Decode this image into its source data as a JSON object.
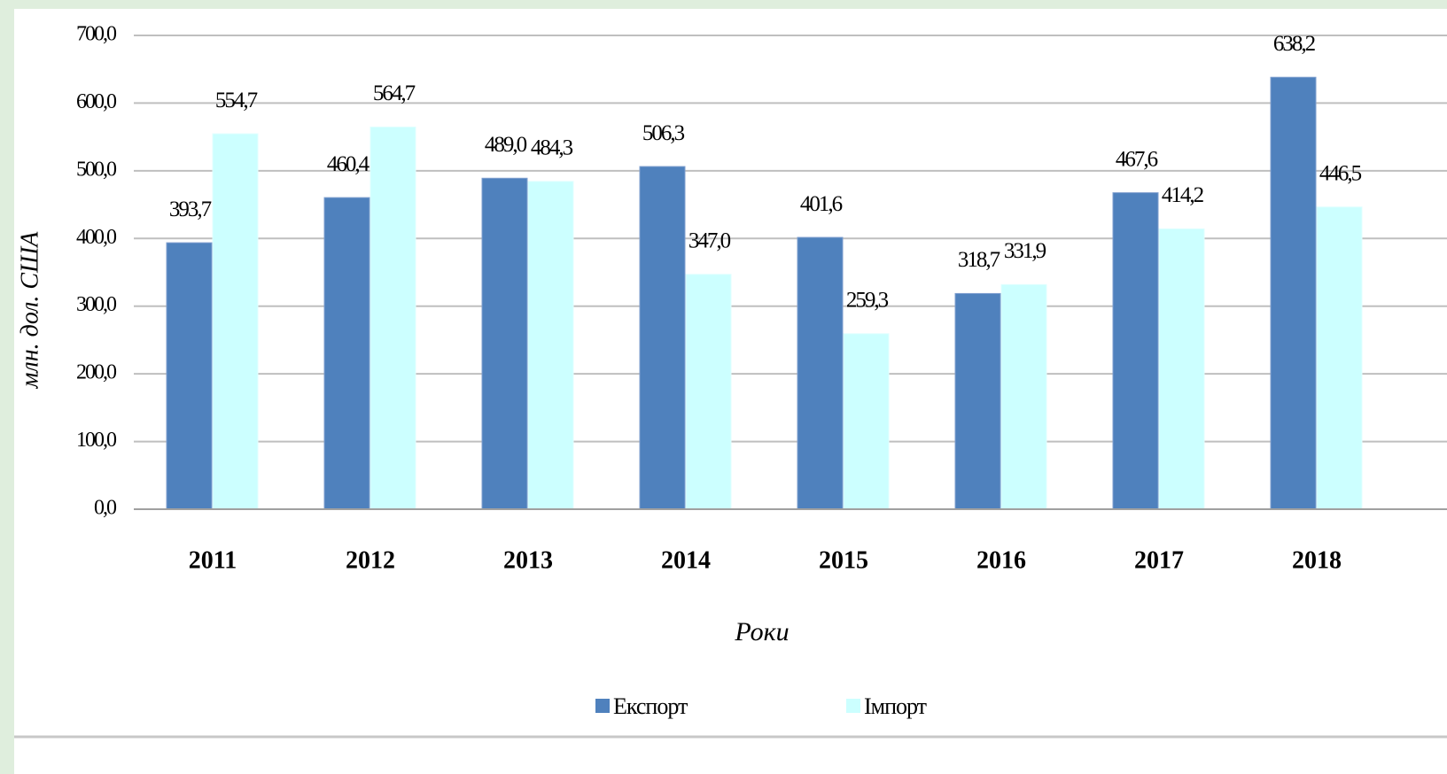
{
  "chart_data": {
    "type": "bar",
    "categories": [
      "2011",
      "2012",
      "2013",
      "2014",
      "2015",
      "2016",
      "2017",
      "2018"
    ],
    "series": [
      {
        "name": "Експорт",
        "color": "#4f81bd",
        "values": [
          393.7,
          460.4,
          489.0,
          506.3,
          401.6,
          318.7,
          467.6,
          638.2
        ],
        "value_labels": [
          "393,7",
          "460,4",
          "489,0",
          "506,3",
          "401,6",
          "318,7",
          "467,6",
          "638,2"
        ]
      },
      {
        "name": "Імпорт",
        "color": "#ccffff",
        "values": [
          554.7,
          564.7,
          484.3,
          347.0,
          259.3,
          331.9,
          414.2,
          446.5
        ],
        "value_labels": [
          "554,7",
          "564,7",
          "484,3",
          "347,0",
          "259,3",
          "331,9",
          "414,2",
          "446,5"
        ]
      }
    ],
    "ylabel": "млн. дол. США",
    "xlabel": "Роки",
    "ylim": [
      0,
      700
    ],
    "yticks": [
      {
        "value": 0,
        "label": "0,0"
      },
      {
        "value": 100,
        "label": "100,0"
      },
      {
        "value": 200,
        "label": "200,0"
      },
      {
        "value": 300,
        "label": "300,0"
      },
      {
        "value": 400,
        "label": "400,0"
      },
      {
        "value": 500,
        "label": "500,0"
      },
      {
        "value": 600,
        "label": "600,0"
      },
      {
        "value": 700,
        "label": "700,0"
      }
    ],
    "grid": true,
    "legend": "bottom"
  }
}
